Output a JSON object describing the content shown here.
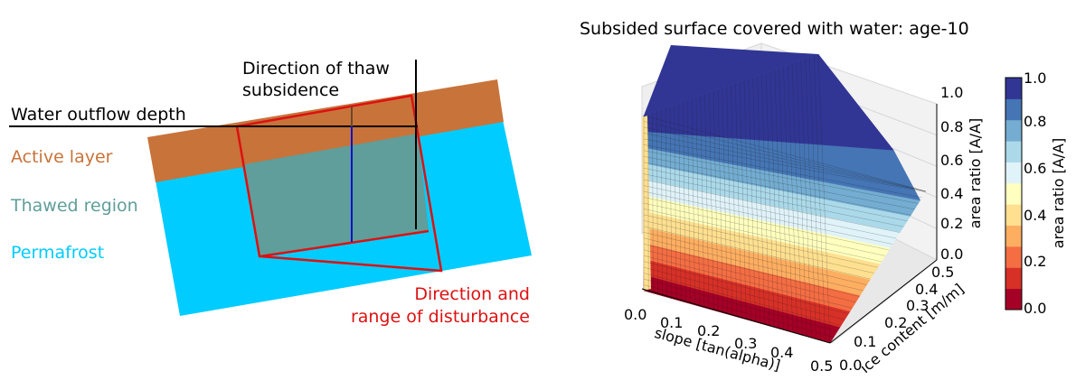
{
  "diagram": {
    "labels": {
      "thaw_direction_line1": "Direction of thaw",
      "thaw_direction_line2": "subsidence",
      "water_outflow": "Water outflow depth",
      "active_layer": "Active layer",
      "thawed_region": "Thawed region",
      "permafrost": "Permafrost",
      "disturbance_line1": "Direction and",
      "disturbance_line2": "range of disturbance"
    },
    "colors": {
      "active_layer": "#c8733a",
      "thawed_region": "#5f9e9a",
      "permafrost": "#00ccff",
      "disturbance": "#dd1111",
      "subsidence_arrow": "#1111cc",
      "lines": "#000000"
    }
  },
  "surface_plot": {
    "title": "Subsided surface covered with water: age-10",
    "x_axis": {
      "label": "slope [tan(alpha)]",
      "ticks": [
        "0.0",
        "0.1",
        "0.2",
        "0.3",
        "0.4",
        "0.5"
      ]
    },
    "y_axis": {
      "label": "ice content [m/m]",
      "ticks": [
        "0.0",
        "0.1",
        "0.2",
        "0.3",
        "0.4",
        "0.5"
      ]
    },
    "z_axis": {
      "label": "area ratio [A/A]",
      "ticks": [
        "0.0",
        "0.2",
        "0.4",
        "0.6",
        "0.8",
        "1.0"
      ]
    },
    "colorbar": {
      "label": "area ratio [A/A]",
      "ticks": [
        "0.0",
        "0.2",
        "0.4",
        "0.6",
        "0.8",
        "1.0"
      ],
      "colors": [
        "#a50026",
        "#d73027",
        "#f46d43",
        "#fdae61",
        "#fee090",
        "#ffffbf",
        "#e0f3f8",
        "#abd9e9",
        "#74add1",
        "#4575b4",
        "#313695"
      ]
    }
  }
}
